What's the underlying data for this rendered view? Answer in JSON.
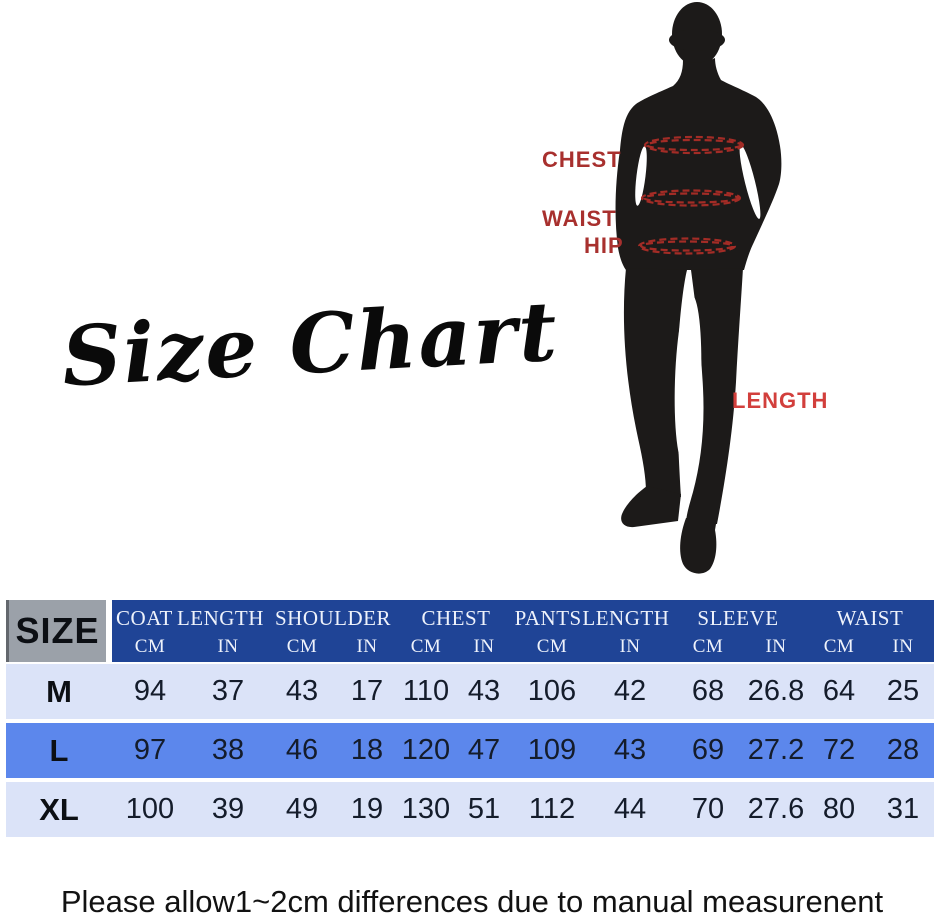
{
  "title": {
    "text": "Size Chart"
  },
  "figure": {
    "silhouette_icon": "suit-man-silhouette",
    "labels": {
      "chest": "CHEST",
      "waist": "WAIST",
      "hip": "HIP",
      "length": "LENGTH"
    }
  },
  "table": {
    "size_header": "SIZE",
    "unit_cm": "CM",
    "unit_in": "IN",
    "groups": [
      "COAT LENGTH",
      "SHOULDER",
      "CHEST",
      "PANTS LENGTH",
      "SLEEVE",
      "WAIST"
    ],
    "rows": [
      {
        "size": "M",
        "values": [
          "94",
          "37",
          "43",
          "17",
          "110",
          "43",
          "106",
          "42",
          "68",
          "26.8",
          "64",
          "25"
        ]
      },
      {
        "size": "L",
        "values": [
          "97",
          "38",
          "46",
          "18",
          "120",
          "47",
          "109",
          "43",
          "69",
          "27.2",
          "72",
          "28"
        ]
      },
      {
        "size": "XL",
        "values": [
          "100",
          "39",
          "49",
          "19",
          "130",
          "51",
          "112",
          "44",
          "70",
          "27.6",
          "80",
          "31"
        ]
      }
    ]
  },
  "caption": "Please allow1~2cm differences due to manual measurenent",
  "colors": {
    "header_blue": "#1f4496",
    "row_light": "#dbe3f8",
    "row_mid": "#5c87ec",
    "size_cell_gray": "#9ba1a9",
    "header_text": "#eef2fb",
    "data_text": "#141c2b",
    "size_text": "#0c0f14",
    "label_red": "#a8302e",
    "length_red": "#d23f3c",
    "ellipse_red": "#a32c26",
    "silhouette_black": "#1c1a19"
  },
  "chart_data": {
    "type": "table",
    "title": "Size Chart",
    "columns": [
      "SIZE",
      "COAT LENGTH CM",
      "COAT LENGTH IN",
      "SHOULDER CM",
      "SHOULDER IN",
      "CHEST CM",
      "CHEST IN",
      "PANTS LENGTH CM",
      "PANTS LENGTH IN",
      "SLEEVE CM",
      "SLEEVE IN",
      "WAIST CM",
      "WAIST IN"
    ],
    "rows": [
      [
        "M",
        94,
        37,
        43,
        17,
        110,
        43,
        106,
        42,
        68,
        26.8,
        64,
        25
      ],
      [
        "L",
        97,
        38,
        46,
        18,
        120,
        47,
        109,
        43,
        69,
        27.2,
        72,
        28
      ],
      [
        "XL",
        100,
        39,
        49,
        19,
        130,
        51,
        112,
        44,
        70,
        27.6,
        80,
        31
      ]
    ],
    "annotations": [
      "CHEST",
      "WAIST",
      "HIP",
      "LENGTH",
      "Please allow1~2cm differences due to manual measurenent"
    ]
  }
}
